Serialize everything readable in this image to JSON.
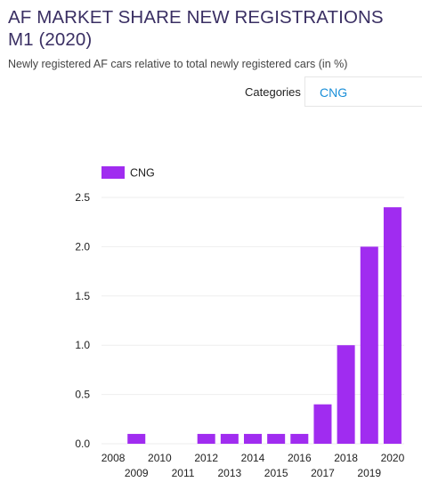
{
  "header": {
    "title": "AF MARKET SHARE NEW REGISTRATIONS M1 (2020)",
    "subtitle": "Newly registered AF cars relative to total newly registered cars (in %)"
  },
  "filter": {
    "label": "Categories",
    "selected": "CNG"
  },
  "colors": {
    "bar": "#a02cf0",
    "grid": "#eeeeee",
    "title": "#3a2f63",
    "select_value": "#1a8fd8"
  },
  "chart_data": {
    "type": "bar",
    "title": "",
    "xlabel": "",
    "ylabel": "",
    "categories": [
      "2008",
      "2009",
      "2010",
      "2011",
      "2012",
      "2013",
      "2014",
      "2015",
      "2016",
      "2017",
      "2018",
      "2019",
      "2020"
    ],
    "series": [
      {
        "name": "CNG",
        "values": [
          0,
          0.1,
          0,
          0,
          0.1,
          0.1,
          0.1,
          0.1,
          0.1,
          0.4,
          1.0,
          2.0,
          2.4
        ]
      }
    ],
    "ylim": [
      0,
      2.5
    ],
    "yticks": [
      "0.0",
      "0.5",
      "1.0",
      "1.5",
      "2.0",
      "2.5"
    ],
    "grid": true,
    "legend_position": "top-left"
  }
}
